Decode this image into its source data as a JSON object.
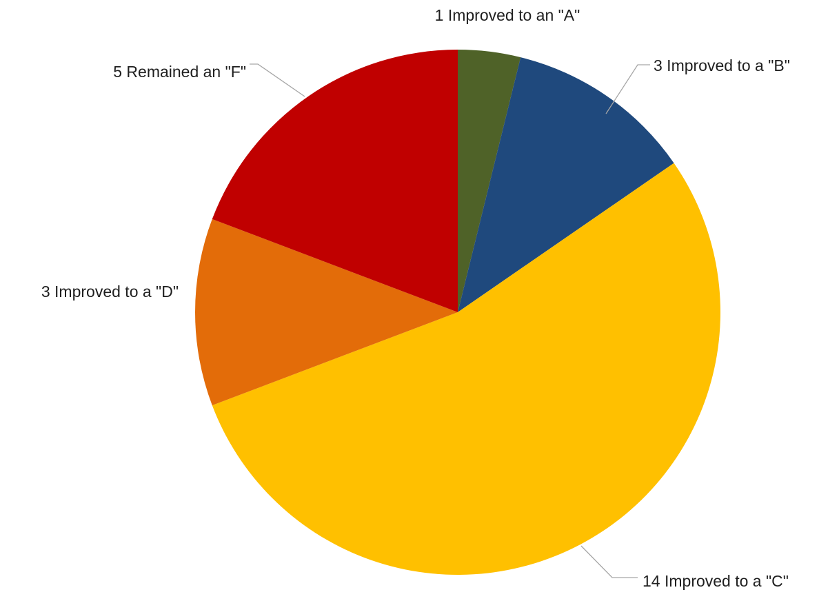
{
  "chart_data": {
    "type": "pie",
    "title": "",
    "slices": [
      {
        "label": "1 Improved to an \"A\"",
        "value": 1,
        "color": "#4F6228"
      },
      {
        "label": "3 Improved to a \"B\"",
        "value": 3,
        "color": "#1F497D"
      },
      {
        "label": "14 Improved to a \"C\"",
        "value": 14,
        "color": "#FFC000"
      },
      {
        "label": "3 Improved to a \"D\"",
        "value": 3,
        "color": "#E36C09"
      },
      {
        "label": "5 Remained an \"F\"",
        "value": 5,
        "color": "#C00000"
      }
    ],
    "start_angle": "12 o'clock",
    "direction": "clockwise",
    "legend": "none",
    "data_labels": "outside with leader lines"
  }
}
